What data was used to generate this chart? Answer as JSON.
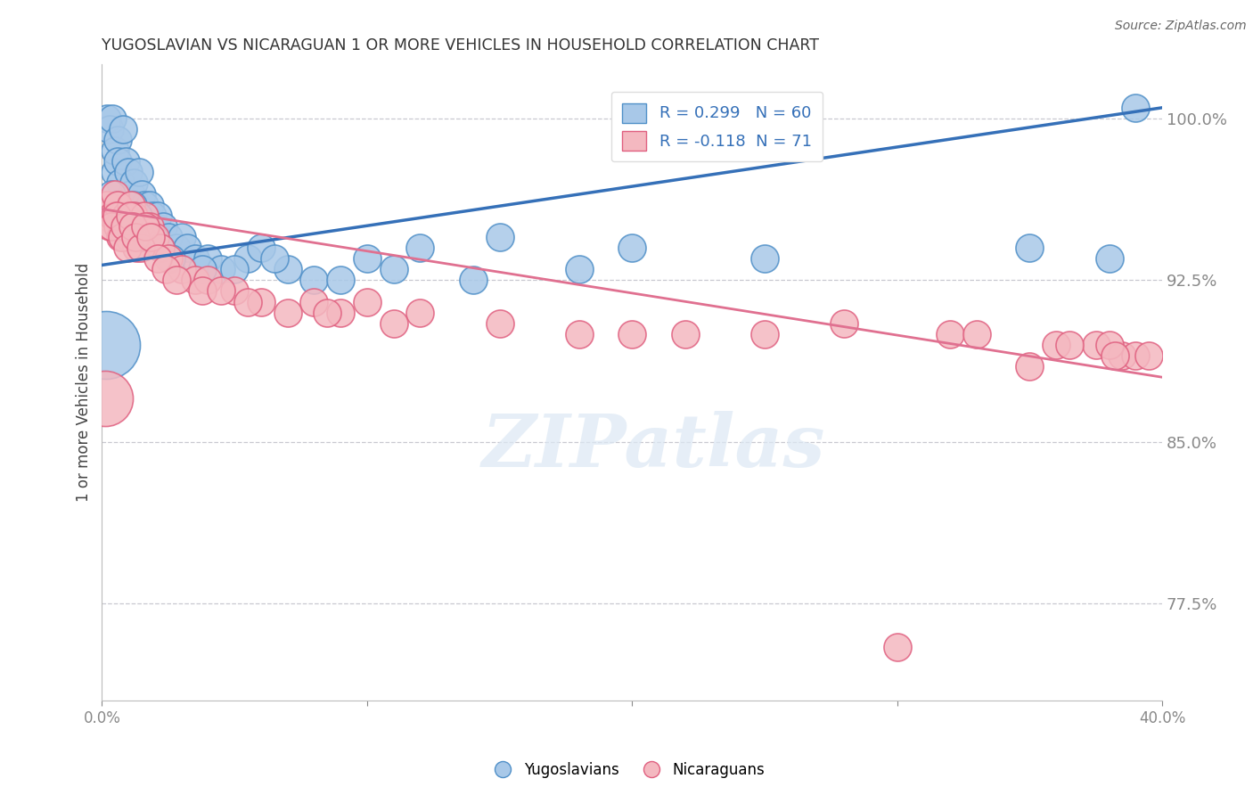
{
  "title": "YUGOSLAVIAN VS NICARAGUAN 1 OR MORE VEHICLES IN HOUSEHOLD CORRELATION CHART",
  "source": "Source: ZipAtlas.com",
  "ylabel": "1 or more Vehicles in Household",
  "x_min": 0.0,
  "x_max": 40.0,
  "y_min": 73.0,
  "y_max": 102.5,
  "yticks": [
    77.5,
    85.0,
    92.5,
    100.0
  ],
  "xticks": [
    0.0,
    10.0,
    20.0,
    30.0,
    40.0
  ],
  "xtick_labels": [
    "0.0%",
    "",
    "",
    "",
    "40.0%"
  ],
  "ytick_labels": [
    "77.5%",
    "85.0%",
    "92.5%",
    "100.0%"
  ],
  "blue_color": "#a8c8e8",
  "pink_color": "#f4b8c0",
  "blue_edge": "#5090c8",
  "pink_edge": "#e06080",
  "blue_R": 0.299,
  "blue_N": 60,
  "pink_R": -0.118,
  "pink_N": 71,
  "legend_label_blue": "Yugoslavians",
  "legend_label_pink": "Nicaraguans",
  "blue_line_color": "#3570b8",
  "pink_line_color": "#e07090",
  "background_color": "#ffffff",
  "grid_color": "#c8c8d0",
  "blue_scatter_x": [
    0.2,
    0.3,
    0.4,
    0.5,
    0.5,
    0.6,
    0.6,
    0.7,
    0.8,
    0.9,
    1.0,
    1.1,
    1.2,
    1.3,
    1.4,
    1.5,
    1.6,
    1.7,
    1.8,
    1.9,
    2.0,
    2.1,
    2.3,
    2.5,
    2.8,
    3.0,
    3.2,
    3.5,
    4.0,
    4.5,
    5.5,
    6.0,
    7.0,
    8.0,
    10.0,
    12.0,
    15.0,
    20.0,
    39.0,
    0.35,
    0.55,
    0.75,
    0.95,
    1.15,
    1.35,
    1.55,
    1.75,
    1.95,
    2.2,
    2.6,
    3.8,
    5.0,
    6.5,
    9.0,
    11.0,
    14.0,
    18.0,
    25.0,
    35.0,
    38.0
  ],
  "blue_scatter_y": [
    100.0,
    99.5,
    100.0,
    97.5,
    98.5,
    99.0,
    98.0,
    97.0,
    99.5,
    98.0,
    97.5,
    96.5,
    97.0,
    96.0,
    97.5,
    96.5,
    96.0,
    95.5,
    96.0,
    95.5,
    95.0,
    95.5,
    95.0,
    94.5,
    94.0,
    94.5,
    94.0,
    93.5,
    93.5,
    93.0,
    93.5,
    94.0,
    93.0,
    92.5,
    93.5,
    94.0,
    94.5,
    94.0,
    100.5,
    96.5,
    96.0,
    95.5,
    95.0,
    96.0,
    95.5,
    95.0,
    94.5,
    94.5,
    94.0,
    93.5,
    93.0,
    93.0,
    93.5,
    92.5,
    93.0,
    92.5,
    93.0,
    93.5,
    94.0,
    93.5
  ],
  "blue_scatter_size": [
    30,
    30,
    30,
    30,
    30,
    30,
    30,
    30,
    30,
    30,
    30,
    30,
    30,
    30,
    30,
    30,
    30,
    30,
    30,
    30,
    30,
    30,
    30,
    30,
    30,
    30,
    30,
    30,
    30,
    30,
    30,
    30,
    30,
    30,
    30,
    30,
    30,
    30,
    30,
    30,
    30,
    30,
    30,
    30,
    30,
    30,
    30,
    30,
    30,
    30,
    30,
    30,
    30,
    30,
    30,
    30,
    30,
    30,
    30,
    30
  ],
  "pink_scatter_x": [
    0.1,
    0.2,
    0.3,
    0.4,
    0.5,
    0.5,
    0.6,
    0.6,
    0.7,
    0.8,
    0.9,
    1.0,
    1.0,
    1.1,
    1.2,
    1.3,
    1.4,
    1.5,
    1.6,
    1.7,
    1.8,
    2.0,
    2.2,
    2.5,
    3.0,
    3.5,
    4.0,
    5.0,
    6.0,
    7.0,
    8.0,
    9.0,
    10.0,
    12.0,
    15.0,
    20.0,
    25.0,
    30.0,
    35.0,
    0.35,
    0.55,
    0.75,
    0.85,
    0.95,
    1.05,
    1.15,
    1.25,
    1.45,
    1.65,
    1.85,
    2.1,
    2.4,
    2.8,
    3.8,
    4.5,
    5.5,
    8.5,
    11.0,
    18.0,
    22.0,
    28.0,
    32.0,
    36.0,
    37.5,
    38.5,
    39.0,
    33.0,
    38.0,
    36.5,
    38.2,
    39.5
  ],
  "pink_scatter_y": [
    95.5,
    96.0,
    95.0,
    95.5,
    96.5,
    95.5,
    96.0,
    95.0,
    94.5,
    95.0,
    95.5,
    95.0,
    94.5,
    96.0,
    95.5,
    94.0,
    95.0,
    94.5,
    95.5,
    94.5,
    95.0,
    94.5,
    94.0,
    93.5,
    93.0,
    92.5,
    92.5,
    92.0,
    91.5,
    91.0,
    91.5,
    91.0,
    91.5,
    91.0,
    90.5,
    90.0,
    90.0,
    75.5,
    88.5,
    95.0,
    95.5,
    94.5,
    95.0,
    94.0,
    95.5,
    95.0,
    94.5,
    94.0,
    95.0,
    94.5,
    93.5,
    93.0,
    92.5,
    92.0,
    92.0,
    91.5,
    91.0,
    90.5,
    90.0,
    90.0,
    90.5,
    90.0,
    89.5,
    89.5,
    89.0,
    89.0,
    90.0,
    89.5,
    89.5,
    89.0,
    89.0
  ],
  "pink_scatter_size": [
    30,
    30,
    30,
    30,
    30,
    30,
    30,
    30,
    30,
    30,
    30,
    30,
    30,
    30,
    30,
    30,
    30,
    30,
    30,
    30,
    30,
    30,
    30,
    30,
    30,
    30,
    30,
    30,
    30,
    30,
    30,
    30,
    30,
    30,
    30,
    30,
    30,
    30,
    30,
    30,
    30,
    30,
    30,
    30,
    30,
    30,
    30,
    30,
    30,
    30,
    30,
    30,
    30,
    30,
    30,
    30,
    30,
    30,
    30,
    30,
    30,
    30,
    30,
    30,
    30,
    30,
    30,
    30,
    30,
    30,
    30
  ],
  "big_blue_x": 0.15,
  "big_blue_y": 89.5,
  "big_pink_x": 0.12,
  "big_pink_y": 87.0,
  "watermark_text": "ZIPatlas"
}
